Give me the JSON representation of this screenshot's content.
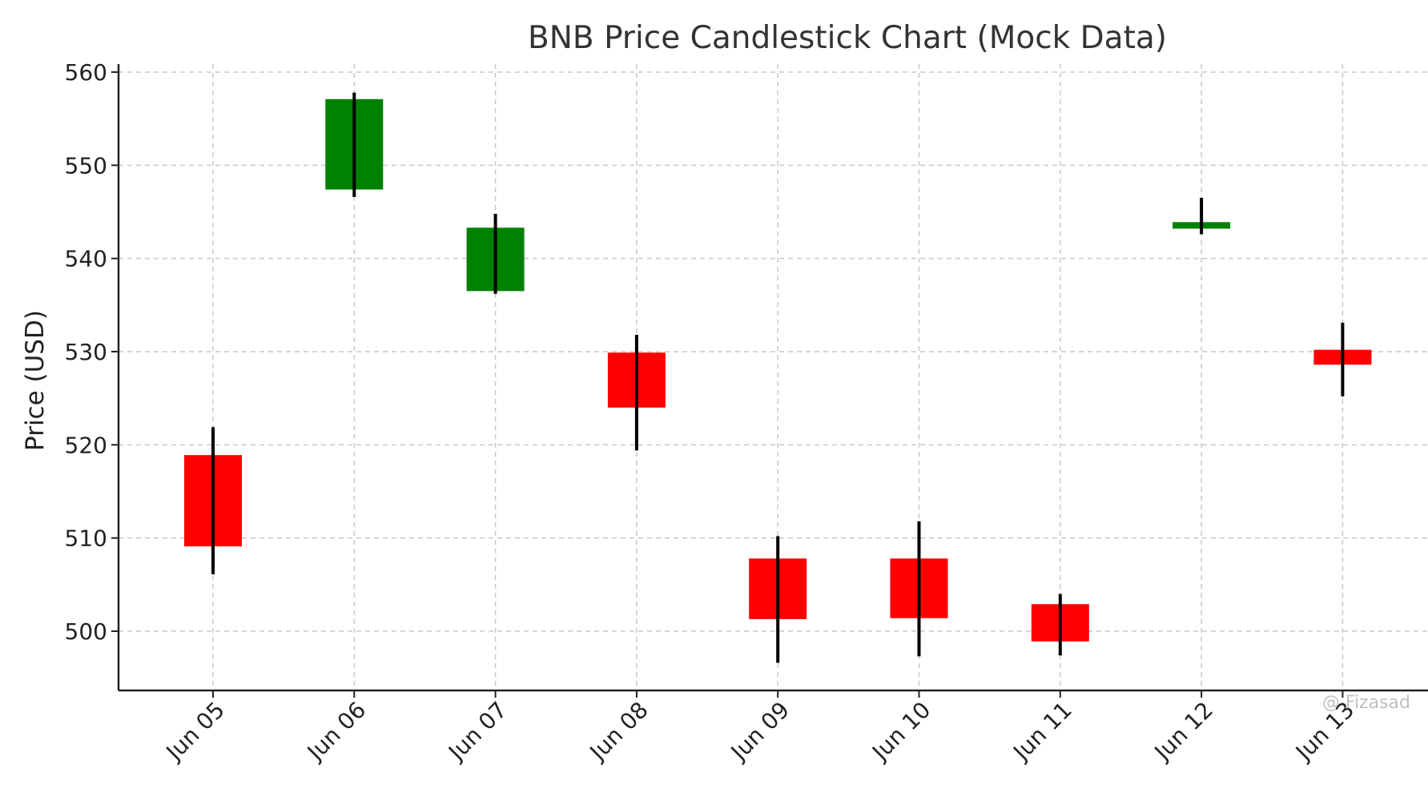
{
  "chart_data": {
    "type": "candlestick",
    "title": "BNB Price Candlestick Chart (Mock Data)",
    "xlabel": "",
    "ylabel": "Price (USD)",
    "ylim": [
      493.5,
      560.5
    ],
    "yticks": [
      500,
      510,
      520,
      530,
      540,
      550,
      560
    ],
    "grid": true,
    "colors": {
      "up": "#008000",
      "down": "#ff0000",
      "wick": "#000000"
    },
    "categories": [
      "Jun 05",
      "Jun 06",
      "Jun 07",
      "Jun 08",
      "Jun 09",
      "Jun 10",
      "Jun 11",
      "Jun 12",
      "Jun 13"
    ],
    "candles": [
      {
        "date": "Jun 05",
        "open": 518.9,
        "high": 521.9,
        "low": 506.1,
        "close": 509.1
      },
      {
        "date": "Jun 06",
        "open": 547.4,
        "high": 557.8,
        "low": 546.6,
        "close": 557.1
      },
      {
        "date": "Jun 07",
        "open": 536.5,
        "high": 544.8,
        "low": 536.2,
        "close": 543.3
      },
      {
        "date": "Jun 08",
        "open": 529.9,
        "high": 531.8,
        "low": 519.4,
        "close": 524.0
      },
      {
        "date": "Jun 09",
        "open": 507.8,
        "high": 510.2,
        "low": 496.6,
        "close": 501.3
      },
      {
        "date": "Jun 10",
        "open": 507.8,
        "high": 511.8,
        "low": 497.3,
        "close": 501.4
      },
      {
        "date": "Jun 11",
        "open": 502.9,
        "high": 504.0,
        "low": 497.4,
        "close": 498.9
      },
      {
        "date": "Jun 12",
        "open": 543.2,
        "high": 546.5,
        "low": 542.6,
        "close": 543.9
      },
      {
        "date": "Jun 13",
        "open": 530.2,
        "high": 533.1,
        "low": 525.2,
        "close": 528.6
      }
    ]
  },
  "watermark": "@ Fizasad"
}
